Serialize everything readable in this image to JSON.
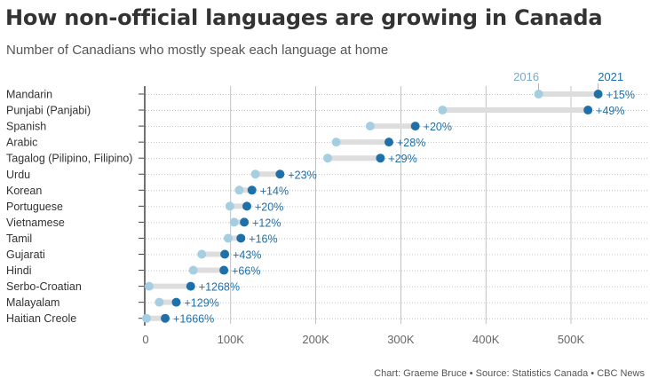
{
  "header": {
    "title": "How non-official languages are growing in Canada",
    "subtitle": "Number of Canadians who mostly speak each language at home"
  },
  "footer": {
    "credit": "Chart: Graeme Bruce • Source: Statistics Canada • CBC News"
  },
  "colors": {
    "y2016": "#a6cee3",
    "y2021": "#1f6fa8",
    "change_label": "#1f6fa8",
    "connector": "#dddddd",
    "grid": "#999999"
  },
  "chart_data": {
    "type": "dot-plot",
    "title": "How non-official languages are growing in Canada",
    "subtitle": "Number of Canadians who mostly speak each language at home",
    "series_labels": [
      "2016",
      "2021"
    ],
    "x_ticks": [
      "0",
      "100K",
      "200K",
      "300K",
      "400K",
      "500K"
    ],
    "x_tick_values": [
      0,
      100000,
      200000,
      300000,
      400000,
      500000
    ],
    "xlim": [
      0,
      560000
    ],
    "grid": "vertical",
    "categories": [
      "Mandarin",
      "Punjabi (Panjabi)",
      "Spanish",
      "Arabic",
      "Tagalog (Pilipino, Filipino)",
      "Urdu",
      "Korean",
      "Portuguese",
      "Vietnamese",
      "Tamil",
      "Gujarati",
      "Hindi",
      "Serbo-Croatian",
      "Malayalam",
      "Haitian Creole"
    ],
    "series": [
      {
        "name": "2016",
        "values": [
          462000,
          349000,
          264000,
          224000,
          214000,
          129000,
          110000,
          99000,
          104000,
          97000,
          66000,
          56000,
          4000,
          16000,
          1000
        ]
      },
      {
        "name": "2021",
        "values": [
          532000,
          520000,
          317000,
          286000,
          276000,
          158000,
          125000,
          119000,
          116000,
          112000,
          93000,
          92000,
          53000,
          36000,
          23000
        ]
      }
    ],
    "change_labels": [
      "+15%",
      "+49%",
      "+20%",
      "+28%",
      "+29%",
      "+23%",
      "+14%",
      "+20%",
      "+12%",
      "+16%",
      "+43%",
      "+66%",
      "+1268%",
      "+129%",
      "+1666%"
    ]
  }
}
